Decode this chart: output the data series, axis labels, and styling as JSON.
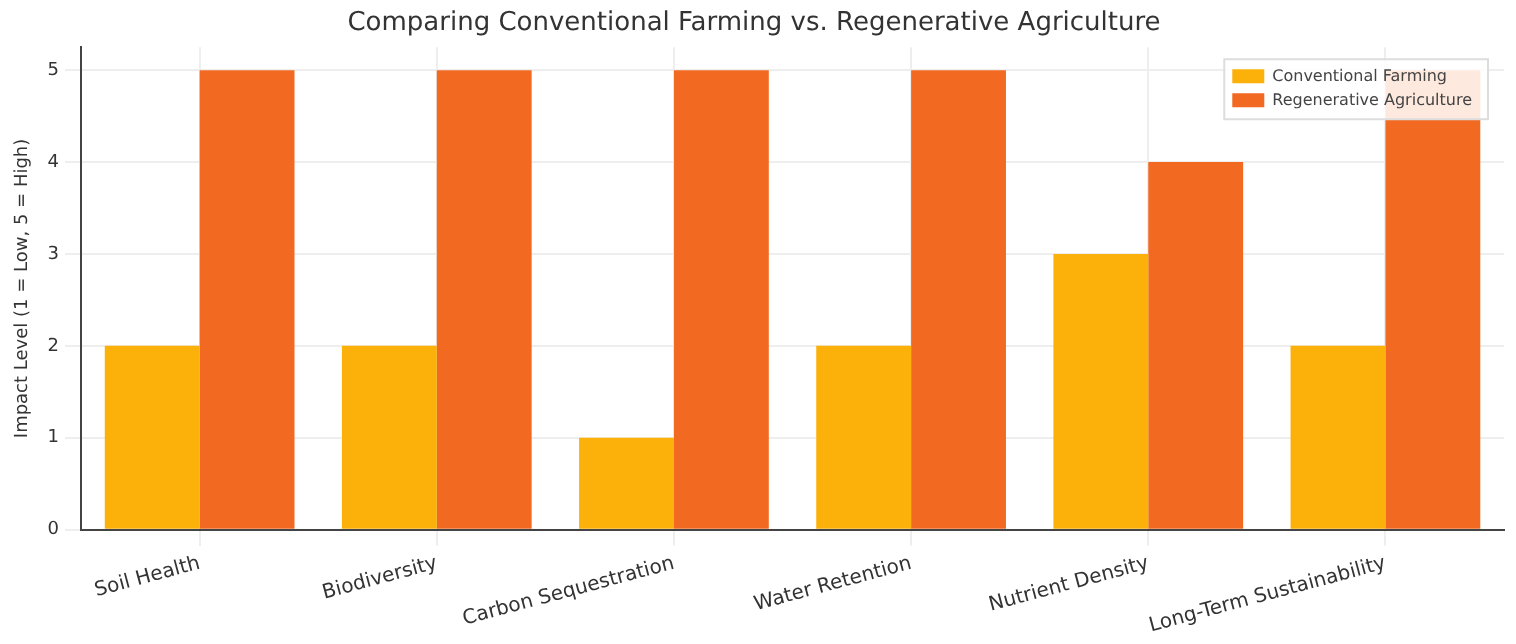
{
  "chart_data": {
    "type": "bar",
    "title": "Comparing Conventional Farming vs. Regenerative Agriculture",
    "ylabel": "Impact Level (1 = Low, 5 = High)",
    "categories": [
      "Soil Health",
      "Biodiversity",
      "Carbon Sequestration",
      "Water Retention",
      "Nutrient Density",
      "Long-Term Sustainability"
    ],
    "series": [
      {
        "name": "Conventional Farming",
        "color": "#fbb10a",
        "values": [
          2,
          2,
          1,
          2,
          3,
          2
        ]
      },
      {
        "name": "Regenerative Agriculture",
        "color": "#f26a22",
        "values": [
          5,
          5,
          5,
          5,
          4,
          5
        ]
      }
    ],
    "ylim": [
      0,
      5.25
    ],
    "yticks": [
      0,
      1,
      2,
      3,
      4,
      5
    ],
    "grid": true,
    "legend": "top right"
  }
}
